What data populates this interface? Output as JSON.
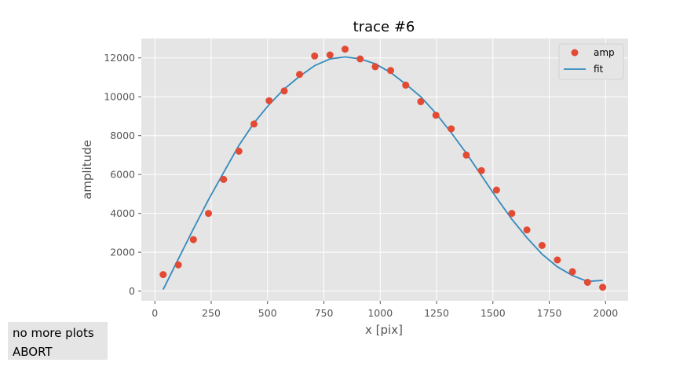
{
  "chart_data": {
    "type": "scatter",
    "title": "trace #6",
    "xlabel": "x [pix]",
    "ylabel": "amplitude",
    "xlim": [
      -60,
      2100
    ],
    "ylim": [
      -500,
      13000
    ],
    "xticks": [
      0,
      250,
      500,
      750,
      1000,
      1250,
      1500,
      1750,
      2000
    ],
    "yticks": [
      0,
      2000,
      4000,
      6000,
      8000,
      10000,
      12000
    ],
    "grid": true,
    "legend": "top-right",
    "series": [
      {
        "name": "amp",
        "kind": "scatter",
        "color": "#e24a33",
        "x": [
          37,
          104,
          171,
          238,
          305,
          373,
          440,
          507,
          574,
          642,
          709,
          777,
          844,
          911,
          978,
          1046,
          1113,
          1180,
          1247,
          1315,
          1382,
          1449,
          1516,
          1584,
          1651,
          1718,
          1786,
          1853,
          1920,
          1987
        ],
        "y": [
          850,
          1350,
          2650,
          4000,
          5750,
          7200,
          8600,
          9800,
          10300,
          11150,
          12100,
          12150,
          12450,
          11950,
          11550,
          11350,
          10600,
          9750,
          9050,
          8350,
          7000,
          6200,
          5200,
          4000,
          3150,
          2350,
          1600,
          1000,
          450,
          200
        ]
      },
      {
        "name": "fit",
        "kind": "line",
        "color": "#348abd",
        "x": [
          37,
          104,
          171,
          238,
          305,
          373,
          440,
          507,
          574,
          642,
          709,
          777,
          844,
          911,
          978,
          1046,
          1113,
          1180,
          1247,
          1315,
          1382,
          1449,
          1516,
          1584,
          1651,
          1718,
          1786,
          1853,
          1920,
          1987
        ],
        "y": [
          80,
          1650,
          3200,
          4700,
          6100,
          7500,
          8650,
          9600,
          10400,
          11050,
          11600,
          11950,
          12050,
          11950,
          11700,
          11250,
          10650,
          10000,
          9150,
          8150,
          7100,
          5950,
          4800,
          3700,
          2750,
          1900,
          1250,
          800,
          500,
          550
        ]
      }
    ]
  },
  "panel": {
    "line1": "no more plots",
    "line2": "ABORT"
  }
}
